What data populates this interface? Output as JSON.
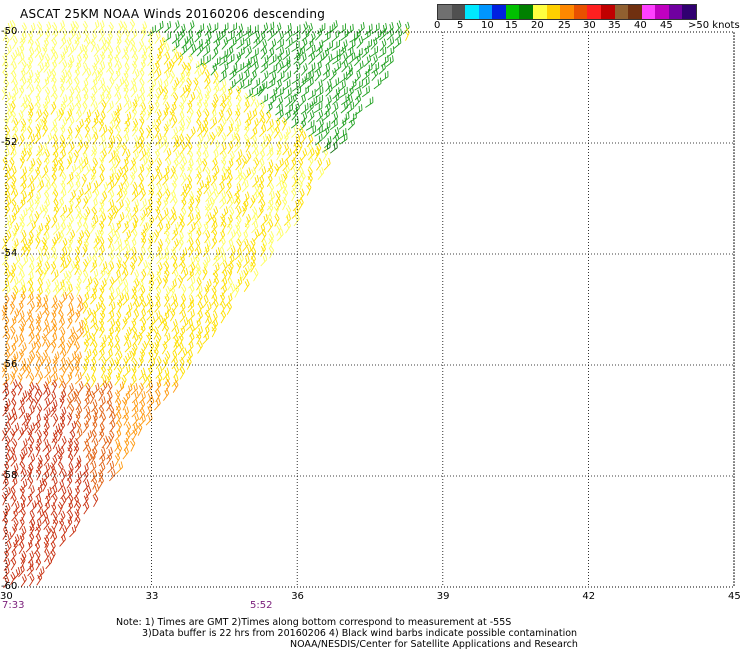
{
  "header": {
    "title": "ASCAT 25KM NOAA Winds 20160206 descending"
  },
  "legend": {
    "colors": [
      "#707070",
      "#505050",
      "#00e8ff",
      "#0096ff",
      "#0020e0",
      "#00c000",
      "#008000",
      "#ffff40",
      "#ffd000",
      "#ff8800",
      "#e85000",
      "#ff2020",
      "#c00000",
      "#906030",
      "#703010",
      "#ff40ff",
      "#c000c0",
      "#7000a0",
      "#300070"
    ],
    "labels": [
      "0",
      "5",
      "10",
      "15",
      "20",
      "25",
      "30",
      "35",
      "40",
      "45",
      ">50 knots"
    ]
  },
  "axes": {
    "lon_ticks": [
      "30",
      "33",
      "36",
      "39",
      "42",
      "45"
    ],
    "lat_ticks": [
      "-50",
      "-52",
      "-54",
      "-56",
      "-58",
      "-60"
    ],
    "lon_range": [
      30,
      45
    ],
    "lat_range": [
      -60,
      -50
    ],
    "grid": "dotted"
  },
  "times": [
    "7:33",
    "5:52"
  ],
  "notes": {
    "line1": "Note: 1) Times are GMT 2)Times along bottom correspond to measurement at -55S",
    "line2": "3)Data buffer is 22 hrs from 20160206 4) Black wind barbs indicate possible contamination",
    "line3": "NOAA/NESDIS/Center for Satellite Applications and Research"
  },
  "swath": {
    "description_colors": {
      "yellow": "#ffe000",
      "light_yellow": "#ffff60",
      "orange": "#ff9a10",
      "dark_orange": "#e06010",
      "red": "#c83010",
      "green": "#20a020",
      "dark_green": "#107010"
    }
  }
}
